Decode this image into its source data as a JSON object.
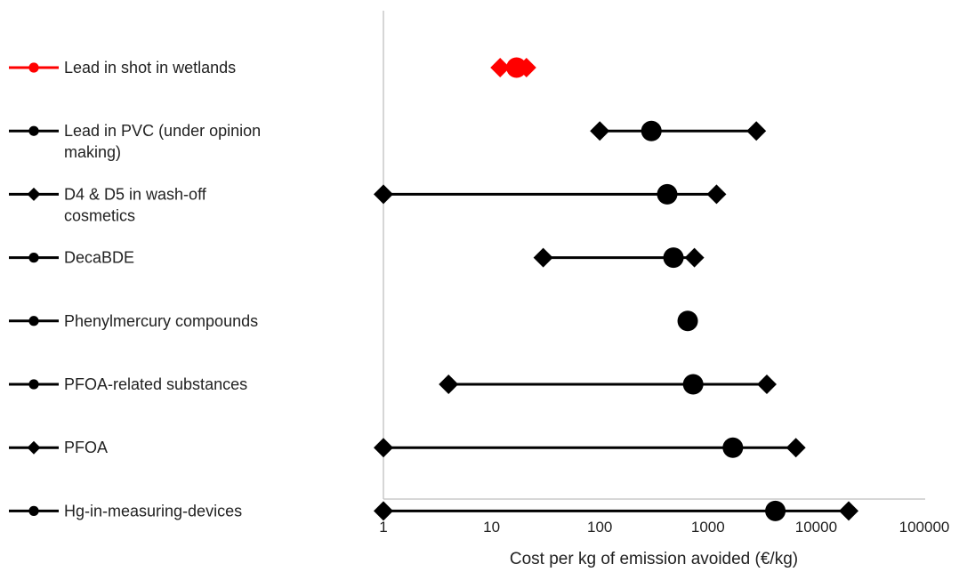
{
  "chart_data": {
    "type": "scatter",
    "title": "",
    "xlabel": "Cost per kg of emission avoided (€/kg)",
    "ylabel": "",
    "xscale": "log",
    "xlim": [
      1,
      100000
    ],
    "xticks": [
      1,
      10,
      100,
      1000,
      10000,
      100000
    ],
    "xtick_labels": [
      "1",
      "10",
      "100",
      "1000",
      "10000",
      "100000"
    ],
    "grid": false,
    "legend_position": "left",
    "series": [
      {
        "name": "Lead in shot in wetlands",
        "color": "#ff0000",
        "marker": "circle",
        "min": 12,
        "central": 17,
        "max": 21
      },
      {
        "name": "Lead in PVC (under opinion making)",
        "color": "#000000",
        "marker": "circle",
        "min": 100,
        "central": 300,
        "max": 2800
      },
      {
        "name": "D4 & D5 in wash-off cosmetics",
        "color": "#000000",
        "marker": "diamond",
        "min": 1,
        "central": 420,
        "max": 1200
      },
      {
        "name": "DecaBDE",
        "color": "#000000",
        "marker": "circle",
        "min": 30,
        "central": 480,
        "max": 750
      },
      {
        "name": "Phenylmercury compounds",
        "color": "#000000",
        "marker": "circle",
        "min": null,
        "central": 650,
        "max": null
      },
      {
        "name": "PFOA-related substances",
        "color": "#000000",
        "marker": "circle",
        "min": 4,
        "central": 730,
        "max": 3500
      },
      {
        "name": "PFOA",
        "color": "#000000",
        "marker": "diamond",
        "min": 1,
        "central": 1700,
        "max": 6500
      },
      {
        "name": "Hg-in-measuring-devices",
        "color": "#000000",
        "marker": "circle",
        "min": 1,
        "central": 4200,
        "max": 20000
      }
    ]
  }
}
